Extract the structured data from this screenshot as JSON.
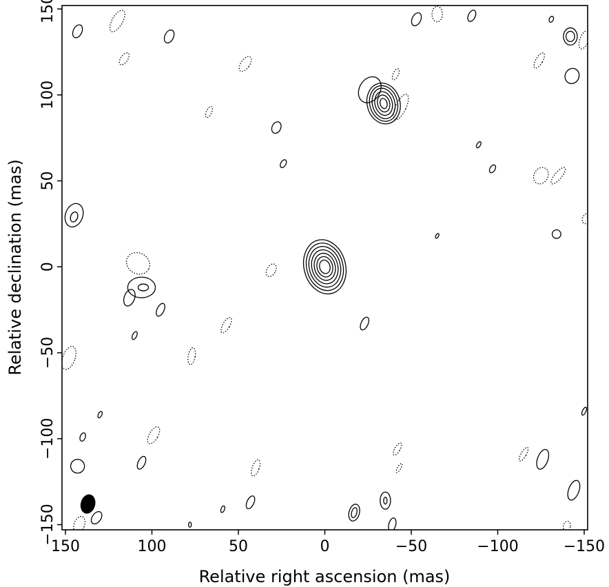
{
  "chart_data": {
    "type": "contour",
    "xlabel": "Relative right ascension (mas)",
    "ylabel": "Relative declination (mas)",
    "xlim": [
      152,
      -152
    ],
    "ylim": [
      -153,
      152
    ],
    "x_direction": "decreasing",
    "xticks": [
      150,
      100,
      50,
      0,
      -50,
      -100,
      -150
    ],
    "xtick_labels": [
      "150",
      "100",
      "50",
      "0",
      "−50",
      "−100",
      "−150"
    ],
    "yticks": [
      150,
      100,
      50,
      0,
      -50,
      -100,
      -150
    ],
    "ytick_labels": [
      "150",
      "100",
      "50",
      "0",
      "−50",
      "−100",
      "−150"
    ],
    "grid": false,
    "beam": {
      "x": 137,
      "y": -138,
      "major": 11,
      "minor": 8,
      "pa_deg": 15
    },
    "sources": [
      {
        "name": "core",
        "x": 0,
        "y": 0,
        "semi_x": [
          12,
          10.5,
          9,
          7.5,
          6,
          4.5,
          3
        ],
        "semi_y": [
          16,
          14,
          12,
          10,
          8,
          6,
          4
        ],
        "angle": -15
      },
      {
        "name": "component",
        "x": -34,
        "y": 95,
        "semi_x": [
          9.5,
          8,
          6.5,
          5,
          3.5,
          2
        ],
        "semi_y": [
          12,
          10.5,
          9,
          7,
          5,
          3
        ],
        "angle": -15
      }
    ],
    "positive_contours": [
      {
        "x": -26,
        "y": 103,
        "a": 6,
        "b": 8,
        "angle": 30
      },
      {
        "x": 145,
        "y": 30,
        "a": 5,
        "b": 7,
        "angle": 20
      },
      {
        "x": 145,
        "y": 29,
        "a": 2,
        "b": 3,
        "angle": 20
      },
      {
        "x": 106,
        "y": -12,
        "a": 8,
        "b": 6,
        "angle": 0
      },
      {
        "x": 105,
        "y": -12,
        "a": 3,
        "b": 2,
        "angle": 0
      },
      {
        "x": 113,
        "y": -18,
        "a": 3,
        "b": 5,
        "angle": 20
      },
      {
        "x": 143,
        "y": 137,
        "a": 2.5,
        "b": 4,
        "angle": 25
      },
      {
        "x": 90,
        "y": 134,
        "a": 2.5,
        "b": 4,
        "angle": 25
      },
      {
        "x": 28,
        "y": 81,
        "a": 2.5,
        "b": 3.5,
        "angle": 25
      },
      {
        "x": 24,
        "y": 60,
        "a": 1.5,
        "b": 2.5,
        "angle": 30
      },
      {
        "x": -53,
        "y": 144,
        "a": 2.5,
        "b": 4,
        "angle": 25
      },
      {
        "x": -85,
        "y": 146,
        "a": 2,
        "b": 3.5,
        "angle": 25
      },
      {
        "x": -131,
        "y": 144,
        "a": 1.2,
        "b": 1.8,
        "angle": 25
      },
      {
        "x": -142,
        "y": 134,
        "a": 4,
        "b": 5,
        "angle": 0
      },
      {
        "x": -142,
        "y": 134,
        "a": 2.5,
        "b": 3,
        "angle": 0
      },
      {
        "x": -143,
        "y": 111,
        "a": 4,
        "b": 4.5,
        "angle": 25
      },
      {
        "x": -89,
        "y": 71,
        "a": 1,
        "b": 2,
        "angle": 30
      },
      {
        "x": -97,
        "y": 57,
        "a": 1.5,
        "b": 2.5,
        "angle": 30
      },
      {
        "x": -134,
        "y": 19,
        "a": 2.5,
        "b": 2.5,
        "angle": 0
      },
      {
        "x": -65,
        "y": 18,
        "a": 0.8,
        "b": 1.5,
        "angle": 30
      },
      {
        "x": 95,
        "y": -25,
        "a": 2,
        "b": 4,
        "angle": 25
      },
      {
        "x": 110,
        "y": -40,
        "a": 1.2,
        "b": 2.5,
        "angle": 25
      },
      {
        "x": -23,
        "y": -33,
        "a": 2,
        "b": 4,
        "angle": 25
      },
      {
        "x": 130,
        "y": -86,
        "a": 1,
        "b": 2,
        "angle": 25
      },
      {
        "x": 140,
        "y": -99,
        "a": 1.5,
        "b": 2.5,
        "angle": 20
      },
      {
        "x": 106,
        "y": -114,
        "a": 2,
        "b": 4,
        "angle": 25
      },
      {
        "x": 143,
        "y": -116,
        "a": 4,
        "b": 4,
        "angle": 0
      },
      {
        "x": 43,
        "y": -137,
        "a": 2,
        "b": 4,
        "angle": 25
      },
      {
        "x": 59,
        "y": -141,
        "a": 1,
        "b": 2,
        "angle": 20
      },
      {
        "x": 78,
        "y": -150,
        "a": 0.8,
        "b": 1.5,
        "angle": 0
      },
      {
        "x": 132,
        "y": -146,
        "a": 2.5,
        "b": 4,
        "angle": 35
      },
      {
        "x": -17,
        "y": -143,
        "a": 3,
        "b": 5,
        "angle": 15
      },
      {
        "x": -17,
        "y": -143,
        "a": 1.5,
        "b": 3,
        "angle": 15
      },
      {
        "x": -35,
        "y": -136,
        "a": 3,
        "b": 5,
        "angle": 0
      },
      {
        "x": -35,
        "y": -136,
        "a": 1,
        "b": 2,
        "angle": 0
      },
      {
        "x": -39,
        "y": -150,
        "a": 2,
        "b": 4,
        "angle": 15
      },
      {
        "x": -126,
        "y": -112,
        "a": 3,
        "b": 6,
        "angle": 20
      },
      {
        "x": -144,
        "y": -130,
        "a": 3,
        "b": 6,
        "angle": 20
      },
      {
        "x": -150,
        "y": -84,
        "a": 1,
        "b": 2.5,
        "angle": 25
      }
    ],
    "negative_contours": [
      {
        "x": 120,
        "y": 143,
        "a": 3,
        "b": 7,
        "angle": 30
      },
      {
        "x": 116,
        "y": 121,
        "a": 2,
        "b": 4,
        "angle": 35
      },
      {
        "x": 46,
        "y": 118,
        "a": 2.5,
        "b": 5,
        "angle": 35
      },
      {
        "x": 67,
        "y": 90,
        "a": 1.5,
        "b": 3.5,
        "angle": 25
      },
      {
        "x": -41,
        "y": 112,
        "a": 1.5,
        "b": 3.5,
        "angle": 25
      },
      {
        "x": -44,
        "y": 93,
        "a": 3,
        "b": 8,
        "angle": 25
      },
      {
        "x": -65,
        "y": 147,
        "a": 3,
        "b": 4.5,
        "angle": 0
      },
      {
        "x": -124,
        "y": 120,
        "a": 2,
        "b": 5,
        "angle": 30
      },
      {
        "x": -150,
        "y": 132,
        "a": 2.5,
        "b": 5.5,
        "angle": 20
      },
      {
        "x": -125,
        "y": 53,
        "a": 4,
        "b": 5,
        "angle": 30
      },
      {
        "x": -135,
        "y": 53,
        "a": 2,
        "b": 6,
        "angle": 40
      },
      {
        "x": -151,
        "y": 28,
        "a": 2,
        "b": 3,
        "angle": 20
      },
      {
        "x": 108,
        "y": 2,
        "a": 7,
        "b": 6,
        "angle": 30
      },
      {
        "x": 31,
        "y": -2,
        "a": 2.5,
        "b": 4,
        "angle": 30
      },
      {
        "x": 57,
        "y": -34,
        "a": 2,
        "b": 5,
        "angle": 30
      },
      {
        "x": 77,
        "y": -52,
        "a": 2,
        "b": 5,
        "angle": 10
      },
      {
        "x": 148,
        "y": -53,
        "a": 3.5,
        "b": 7,
        "angle": 20
      },
      {
        "x": 99,
        "y": -98,
        "a": 2.5,
        "b": 5.5,
        "angle": 30
      },
      {
        "x": 40,
        "y": -117,
        "a": 2,
        "b": 5,
        "angle": 20
      },
      {
        "x": -42,
        "y": -106,
        "a": 1.5,
        "b": 4,
        "angle": 30
      },
      {
        "x": -43,
        "y": -117,
        "a": 1,
        "b": 3,
        "angle": 30
      },
      {
        "x": -115,
        "y": -109,
        "a": 1.5,
        "b": 4.5,
        "angle": 30
      },
      {
        "x": -140,
        "y": -151,
        "a": 2,
        "b": 3,
        "angle": 10
      },
      {
        "x": 142,
        "y": -150,
        "a": 3,
        "b": 5,
        "angle": 20
      },
      {
        "x": 165,
        "y": 0,
        "a": 0,
        "b": 0,
        "angle": 0
      }
    ]
  }
}
